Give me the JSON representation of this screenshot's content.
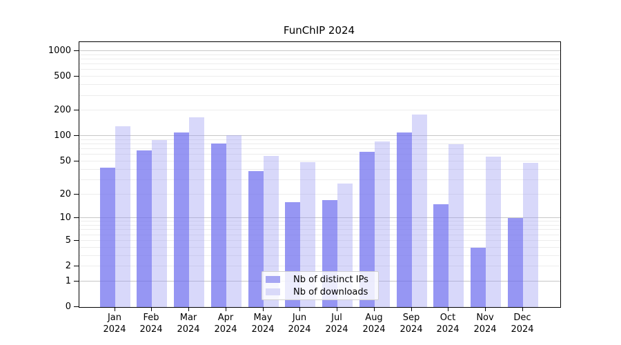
{
  "chart_data": {
    "type": "bar",
    "title": "FunChIP 2024",
    "categories": [
      "Jan",
      "Feb",
      "Mar",
      "Apr",
      "May",
      "Jun",
      "Jul",
      "Aug",
      "Sep",
      "Oct",
      "Nov",
      "Dec"
    ],
    "x_year_label": "2024",
    "series": [
      {
        "name": "Nb of distinct IPs",
        "bar_color": "rgba(110,110,238,0.72)",
        "swatch_color": "#a6a6f3",
        "values": [
          42,
          68,
          110,
          82,
          38,
          16,
          17,
          65,
          110,
          15,
          4,
          10
        ]
      },
      {
        "name": "Nb of downloads",
        "bar_color": "rgba(158,158,242,0.40)",
        "swatch_color": "#d9d9f9",
        "values": [
          130,
          90,
          167,
          103,
          58,
          49,
          27,
          86,
          180,
          80,
          57,
          48
        ]
      }
    ],
    "y_axis": {
      "scale": "log10(value+1)",
      "range": [
        0,
        1000
      ],
      "tick_labels": [
        0,
        1,
        2,
        5,
        10,
        20,
        50,
        100,
        200,
        500,
        1000
      ],
      "major_gridlines": [
        1,
        10,
        100,
        1000
      ],
      "minor_gridlines": [
        2,
        3,
        4,
        5,
        6,
        7,
        8,
        9,
        20,
        30,
        40,
        50,
        60,
        70,
        80,
        90,
        200,
        300,
        400,
        500,
        600,
        700,
        800,
        900
      ],
      "grid": "on"
    },
    "legend_position": "inside-bottom-center"
  },
  "colors": {
    "grid_major": "#c6c6c6",
    "grid_minor": "#ececec",
    "axis": "#000000",
    "background": "#ffffff"
  }
}
